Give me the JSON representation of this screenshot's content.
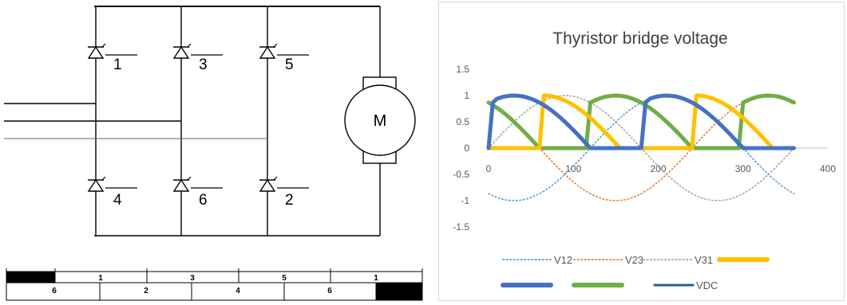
{
  "circuit": {
    "top_diodes": [
      "1",
      "3",
      "5"
    ],
    "bottom_diodes": [
      "4",
      "6",
      "2"
    ],
    "motor_label": "M"
  },
  "timing": {
    "top_row": [
      "1",
      "3",
      "5",
      "1"
    ],
    "bottom_row": [
      "6",
      "2",
      "4",
      "6"
    ]
  },
  "chart_data": {
    "type": "line",
    "title": "Thyristor bridge voltage",
    "xlabel": "",
    "ylabel": "",
    "xlim": [
      0,
      400
    ],
    "ylim": [
      -1.5,
      1.5
    ],
    "x_ticks": [
      "0",
      "100",
      "200",
      "300",
      "400"
    ],
    "y_ticks": [
      "1.5",
      "1",
      "0.5",
      "0",
      "-0.5",
      "-1",
      "-1.5"
    ],
    "x_step_deg": 5,
    "x_range": [
      0,
      360
    ],
    "legend_position": "bottom",
    "grid": false,
    "series": [
      {
        "name": "V12",
        "style": "dotted",
        "color": "#5b9bd5",
        "values": [
          -0.866,
          -0.906,
          -0.94,
          -0.966,
          -0.985,
          -0.996,
          -1,
          -0.996,
          -0.985,
          -0.966,
          -0.94,
          -0.906,
          -0.866,
          -0.819,
          -0.766,
          -0.707,
          -0.643,
          -0.574,
          -0.5,
          -0.423,
          -0.342,
          -0.259,
          -0.174,
          -0.087,
          0,
          0.087,
          0.174,
          0.259,
          0.342,
          0.423,
          0.5,
          0.574,
          0.643,
          0.707,
          0.766,
          0.819,
          0.866,
          0.906,
          0.94,
          0.966,
          0.985,
          0.996,
          1,
          0.996,
          0.985,
          0.966,
          0.94,
          0.906,
          0.866,
          0.819,
          0.766,
          0.707,
          0.643,
          0.574,
          0.5,
          0.423,
          0.342,
          0.259,
          0.174,
          0.087,
          0,
          -0.087,
          -0.174,
          -0.259,
          -0.342,
          -0.423,
          -0.5,
          -0.574,
          -0.643,
          -0.707,
          -0.766,
          -0.819,
          -0.866
        ]
      },
      {
        "name": "V23",
        "style": "dotted",
        "color": "#ed7d31",
        "values": [
          0.866,
          0.819,
          0.766,
          0.707,
          0.643,
          0.574,
          0.5,
          0.423,
          0.342,
          0.259,
          0.174,
          0.087,
          0,
          -0.087,
          -0.174,
          -0.259,
          -0.342,
          -0.423,
          -0.5,
          -0.574,
          -0.643,
          -0.707,
          -0.766,
          -0.819,
          -0.866,
          -0.906,
          -0.94,
          -0.966,
          -0.985,
          -0.996,
          -1,
          -0.996,
          -0.985,
          -0.966,
          -0.94,
          -0.906,
          -0.866,
          -0.819,
          -0.766,
          -0.707,
          -0.643,
          -0.574,
          -0.5,
          -0.423,
          -0.342,
          -0.259,
          -0.174,
          -0.087,
          0,
          0.087,
          0.174,
          0.259,
          0.342,
          0.423,
          0.5,
          0.574,
          0.643,
          0.707,
          0.766,
          0.819,
          0.866,
          0.906,
          0.94,
          0.966,
          0.985,
          0.996,
          1,
          0.996,
          0.985,
          0.966,
          0.94,
          0.906,
          0.866
        ]
      },
      {
        "name": "V31",
        "style": "dotted",
        "color": "#a5a5a5",
        "values": [
          0,
          0.087,
          0.174,
          0.259,
          0.342,
          0.423,
          0.5,
          0.574,
          0.643,
          0.707,
          0.766,
          0.819,
          0.866,
          0.906,
          0.94,
          0.966,
          0.985,
          0.996,
          1,
          0.996,
          0.985,
          0.966,
          0.94,
          0.906,
          0.866,
          0.819,
          0.766,
          0.707,
          0.643,
          0.574,
          0.5,
          0.423,
          0.342,
          0.259,
          0.174,
          0.087,
          0,
          -0.087,
          -0.174,
          -0.259,
          -0.342,
          -0.423,
          -0.5,
          -0.574,
          -0.643,
          -0.707,
          -0.766,
          -0.819,
          -0.866,
          -0.906,
          -0.94,
          -0.966,
          -0.985,
          -0.996,
          -1,
          -0.996,
          -0.985,
          -0.966,
          -0.94,
          -0.906,
          -0.866,
          -0.819,
          -0.766,
          -0.707,
          -0.643,
          -0.574,
          -0.5,
          -0.423,
          -0.342,
          -0.259,
          -0.174,
          -0.087,
          0
        ]
      },
      {
        "name": "",
        "style": "thick",
        "color": "#ffc000",
        "values": [
          0,
          0,
          0,
          0,
          0,
          0,
          0,
          0,
          0,
          0,
          0,
          0,
          0,
          1,
          0.998,
          0.985,
          0.966,
          0.94,
          0.906,
          0.866,
          0.819,
          0.766,
          0.707,
          0.643,
          0.574,
          0.5,
          0.423,
          0.342,
          0.259,
          0.174,
          0.087,
          0,
          0,
          0,
          0,
          0,
          0,
          0,
          0,
          0,
          0,
          0,
          0,
          0,
          0,
          0,
          0,
          0,
          0,
          1,
          0.998,
          0.985,
          0.966,
          0.94,
          0.906,
          0.866,
          0.819,
          0.766,
          0.707,
          0.643,
          0.574,
          0.5,
          0.423,
          0.342,
          0.259,
          0.174,
          0.087,
          0,
          0,
          0,
          0,
          0,
          0
        ]
      },
      {
        "name": "",
        "style": "thick",
        "color": "#4472c4",
        "values": [
          0,
          0.866,
          0.94,
          0.966,
          0.985,
          0.996,
          1,
          0.996,
          0.985,
          0.966,
          0.94,
          0.906,
          0.866,
          0.819,
          0.766,
          0.707,
          0.643,
          0.574,
          0.5,
          0.423,
          0.342,
          0.259,
          0.174,
          0.087,
          0,
          0,
          0,
          0,
          0,
          0,
          0,
          0,
          0,
          0,
          0,
          0,
          0,
          0.866,
          0.94,
          0.966,
          0.985,
          0.996,
          1,
          0.996,
          0.985,
          0.966,
          0.94,
          0.906,
          0.866,
          0.819,
          0.766,
          0.707,
          0.643,
          0.574,
          0.5,
          0.423,
          0.342,
          0.259,
          0.174,
          0.087,
          0,
          0,
          0,
          0,
          0,
          0,
          0,
          0,
          0,
          0,
          0,
          0,
          0
        ]
      },
      {
        "name": "",
        "style": "thick",
        "color": "#70ad47",
        "values": [
          0.866,
          0.819,
          0.766,
          0.707,
          0.643,
          0.574,
          0.5,
          0.423,
          0.342,
          0.259,
          0.174,
          0.087,
          0,
          0,
          0,
          0,
          0,
          0,
          0,
          0,
          0,
          0,
          0,
          0,
          0.866,
          0.906,
          0.94,
          0.966,
          0.985,
          0.996,
          1,
          0.996,
          0.985,
          0.966,
          0.94,
          0.906,
          0.866,
          0.819,
          0.766,
          0.707,
          0.643,
          0.574,
          0.5,
          0.423,
          0.342,
          0.259,
          0.174,
          0.087,
          0,
          0,
          0,
          0,
          0,
          0,
          0,
          0,
          0,
          0,
          0,
          0,
          0.866,
          0.906,
          0.94,
          0.966,
          0.985,
          0.996,
          1,
          0.996,
          0.985,
          0.966,
          0.94,
          0.906,
          0.866
        ]
      },
      {
        "name": "VDC",
        "style": "solid",
        "color": "#255e91",
        "values": [
          0.866,
          0.906,
          0.94,
          0.966,
          0.985,
          0.996,
          1,
          0.996,
          0.985,
          0.966,
          0.94,
          0.906,
          0.866,
          0.906,
          0.94,
          0.966,
          0.985,
          0.996,
          1,
          0.996,
          0.985,
          0.966,
          0.94,
          0.906,
          0.866,
          0.906,
          0.94,
          0.966,
          0.985,
          0.996,
          1,
          0.996,
          0.985,
          0.966,
          0.94,
          0.906,
          0.866,
          0.906,
          0.94,
          0.966,
          0.985,
          0.996,
          1,
          0.996,
          0.985,
          0.966,
          0.94,
          0.906,
          0.866,
          0.906,
          0.94,
          0.966,
          0.985,
          0.996,
          1,
          0.996,
          0.985,
          0.966,
          0.94,
          0.906,
          0.866,
          0.906,
          0.94,
          0.966,
          0.985,
          0.996,
          1,
          0.996,
          0.985,
          0.966,
          0.94,
          0.906,
          0.866
        ]
      }
    ]
  }
}
